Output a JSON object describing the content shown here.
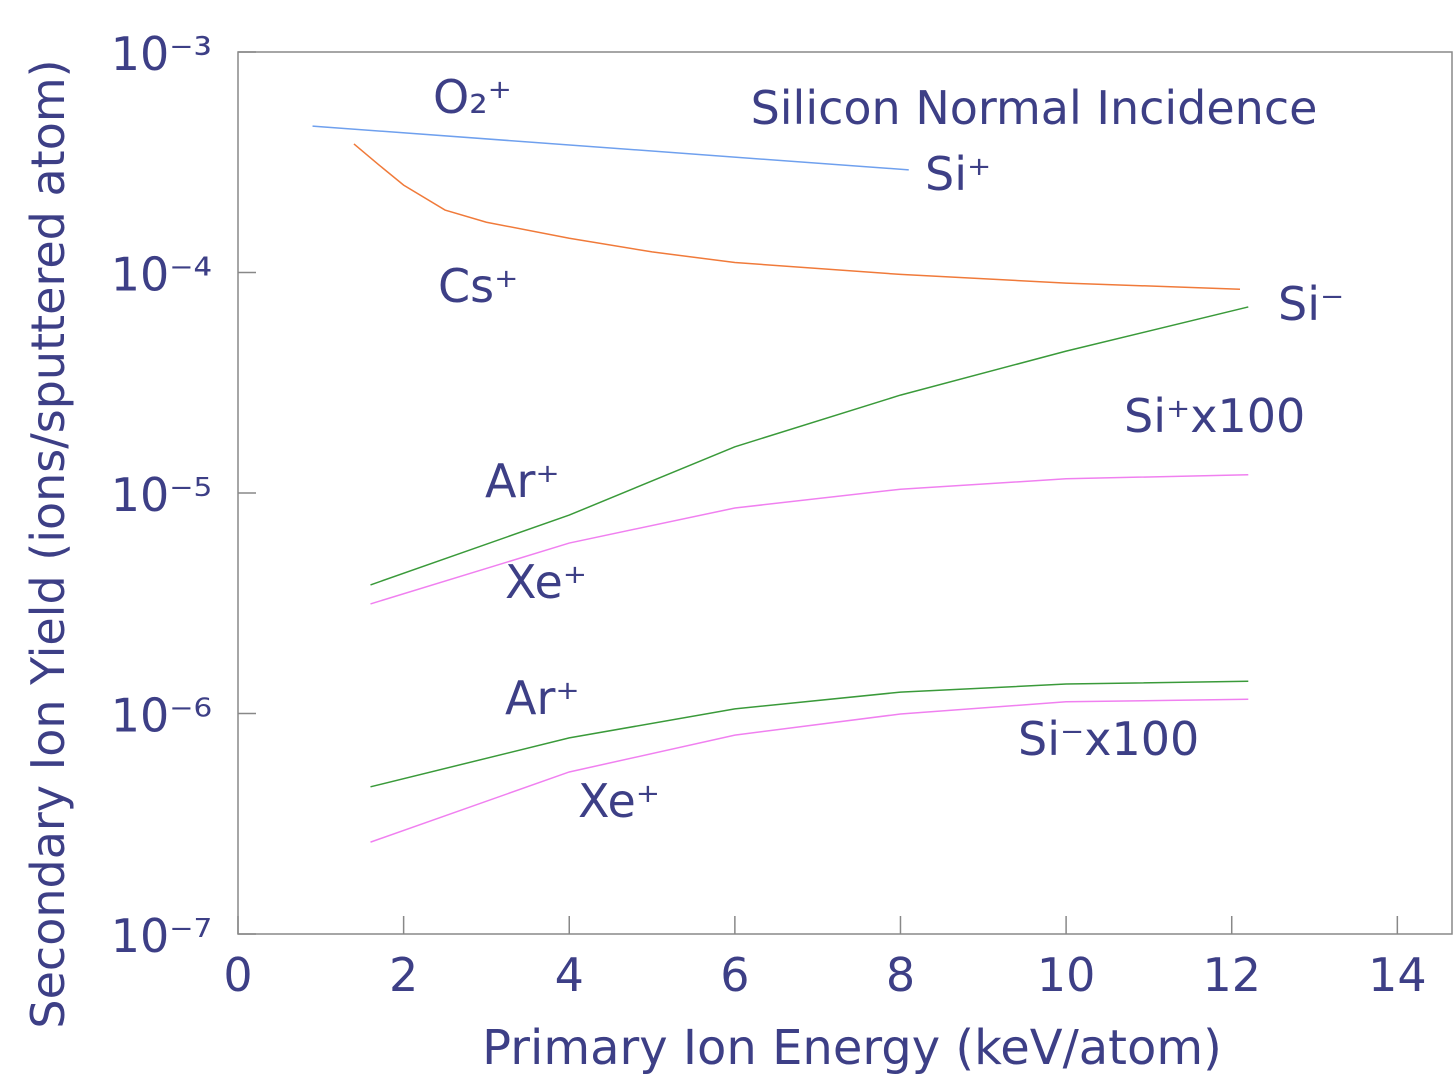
{
  "chart_data": {
    "type": "line",
    "title": "Silicon Normal Incidence",
    "x_label": "Primary Ion Energy (keV/atom)",
    "y_label": "Secondary Ion Yield (ions/sputtered atom)",
    "log_y": true,
    "xlim": [
      0,
      14.66
    ],
    "ylim": [
      1e-07,
      0.001
    ],
    "xticks": [
      0,
      2,
      4,
      6,
      8,
      10,
      12,
      14
    ],
    "yticks": [
      {
        "value": 1e-07,
        "label": "10⁻⁷"
      },
      {
        "value": 1e-06,
        "label": "10⁻⁶"
      },
      {
        "value": 1e-05,
        "label": "10⁻⁵"
      },
      {
        "value": 0.0001,
        "label": "10⁻⁴"
      },
      {
        "value": 0.001,
        "label": "10⁻³"
      }
    ],
    "series": [
      {
        "color": "#6fa0ee",
        "x": [
          0.9,
          8.1
        ],
        "values": [
          0.000461,
          0.000292
        ]
      },
      {
        "color": "#f07a3a",
        "x": [
          1.4,
          1.7,
          2,
          2.5,
          3,
          4,
          5,
          6,
          8,
          10,
          12.1
        ],
        "values": [
          0.000383,
          0.000308,
          0.000249,
          0.000192,
          0.000169,
          0.000143,
          0.000124,
          0.000111,
          9.8e-05,
          8.95e-05,
          8.4e-05
        ]
      },
      {
        "color": "#3a9a3a",
        "x": [
          1.6,
          4,
          6,
          8,
          10,
          12.2
        ],
        "values": [
          3.83e-06,
          7.94e-06,
          1.62e-05,
          2.78e-05,
          4.4e-05,
          6.98e-05
        ]
      },
      {
        "color": "#f080f0",
        "x": [
          1.6,
          4,
          6,
          8,
          10,
          12.2
        ],
        "values": [
          3.14e-06,
          5.93e-06,
          8.55e-06,
          1.04e-05,
          1.16e-05,
          1.21e-05
        ]
      },
      {
        "color": "#3a9a3a",
        "x": [
          1.6,
          4,
          6,
          8,
          10,
          12.2
        ],
        "values": [
          4.65e-07,
          7.75e-07,
          1.05e-06,
          1.25e-06,
          1.36e-06,
          1.4e-06
        ]
      },
      {
        "color": "#f080f0",
        "x": [
          1.6,
          4,
          6,
          8,
          10,
          12.2
        ],
        "values": [
          2.61e-07,
          5.43e-07,
          7.98e-07,
          9.95e-07,
          1.13e-06,
          1.16e-06
        ]
      }
    ],
    "annotations": [
      "O₂⁺",
      "Si⁺",
      "Cs⁺",
      "Si⁻",
      "Si⁺x100",
      "Ar⁺",
      "Xe⁺",
      "Ar⁺",
      "Si⁻x100",
      "Xe⁺"
    ]
  }
}
